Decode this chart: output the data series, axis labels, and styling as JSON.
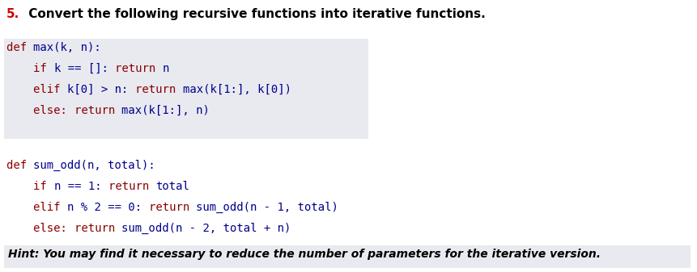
{
  "bg_color": "#ffffff",
  "fig_width": 8.61,
  "fig_height": 3.37,
  "question_number": "5.",
  "question_number_color": "#cc0000",
  "question_text": " Convert the following recursive functions into iterative functions.",
  "question_text_color": "#000000",
  "code_block1_bg": "#e8eaf0",
  "hint_bg": "#e8eaf0",
  "keyword_color": "#8B0000",
  "code_color": "#00008B",
  "hint_color": "#000000",
  "code1_lines": [
    [
      "def ",
      "max(k, n):"
    ],
    [
      "    ",
      "if ",
      "k == []: ",
      "return ",
      "n"
    ],
    [
      "    ",
      "elif ",
      "k[0] > n: ",
      "return ",
      "max(k[1:], k[0])"
    ],
    [
      "    ",
      "else: ",
      "return ",
      "max(k[1:], n)"
    ]
  ],
  "code2_lines": [
    [
      "def ",
      "sum_odd(n, total):"
    ],
    [
      "    ",
      "if ",
      "n == 1: ",
      "return ",
      "total"
    ],
    [
      "    ",
      "elif ",
      "n % 2 == 0: ",
      "return ",
      "sum_odd(n - 1, total)"
    ],
    [
      "    ",
      "else: ",
      "return ",
      "sum_odd(n - 2, total + n)"
    ]
  ],
  "hint_text": "Hint: You may find it necessary to reduce the number of parameters for the iterative version.",
  "font_size_question": 11.0,
  "font_size_code": 10.0,
  "font_size_hint": 10.0,
  "dpi": 100
}
